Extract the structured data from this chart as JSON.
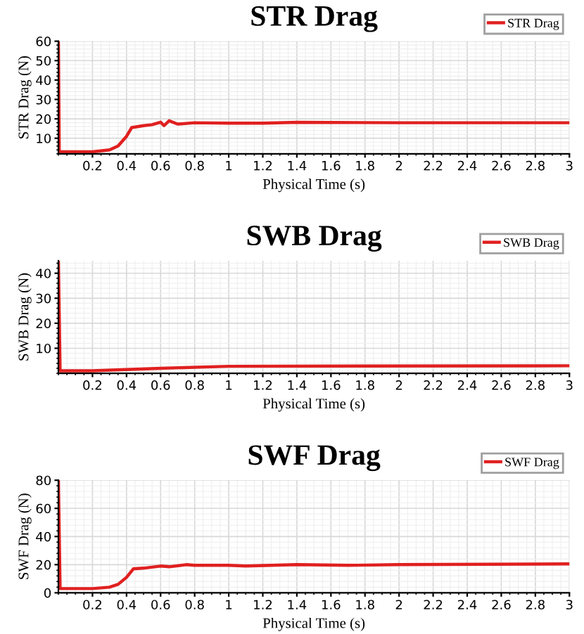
{
  "chart_data": [
    {
      "type": "line",
      "title": "STR Drag",
      "xlabel": "Physical Time (s)",
      "ylabel": "STR Drag (N)",
      "xlim": [
        0,
        3
      ],
      "xticks": [
        0.2,
        0.4,
        0.6,
        0.8,
        1,
        1.2,
        1.4,
        1.6,
        1.8,
        2,
        2.2,
        2.4,
        2.6,
        2.8,
        3
      ],
      "ylim": [
        2,
        60
      ],
      "yticks": [
        10,
        20,
        30,
        40,
        50,
        60
      ],
      "grid": true,
      "legend": "top right",
      "marker": "none",
      "series": [
        {
          "name": "STR Drag",
          "color": "#e02020",
          "x": [
            0,
            0.005,
            0.2,
            0.3,
            0.35,
            0.4,
            0.43,
            0.5,
            0.55,
            0.6,
            0.62,
            0.65,
            0.7,
            0.8,
            1.0,
            1.2,
            1.4,
            2.0,
            3.0
          ],
          "values": [
            60,
            3,
            3,
            4,
            6,
            11,
            15.5,
            16.5,
            17,
            18.3,
            16.5,
            19,
            17.3,
            18,
            17.8,
            17.8,
            18.2,
            18,
            18
          ]
        }
      ]
    },
    {
      "type": "line",
      "title": "SWB Drag",
      "xlabel": "Physical Time (s)",
      "ylabel": "SWB Drag (N)",
      "xlim": [
        0,
        3
      ],
      "xticks": [
        0.2,
        0.4,
        0.6,
        0.8,
        1,
        1.2,
        1.4,
        1.6,
        1.8,
        2,
        2.2,
        2.4,
        2.6,
        2.8,
        3
      ],
      "ylim": [
        0,
        45
      ],
      "yticks": [
        10,
        20,
        30,
        40
      ],
      "grid": true,
      "legend": "top right",
      "marker": "none",
      "series": [
        {
          "name": "SWB Drag",
          "color": "#e02020",
          "x": [
            0,
            0.01,
            0.2,
            0.6,
            1.0,
            3.0
          ],
          "values": [
            45,
            1,
            1,
            2,
            2.8,
            3
          ]
        }
      ]
    },
    {
      "type": "line",
      "title": "SWF Drag",
      "xlabel": "Physical Time (s)",
      "ylabel": "SWF Drag (N)",
      "xlim": [
        0,
        3
      ],
      "xticks": [
        0.2,
        0.4,
        0.6,
        0.8,
        1,
        1.2,
        1.4,
        1.6,
        1.8,
        2,
        2.2,
        2.4,
        2.6,
        2.8,
        3
      ],
      "ylim": [
        0,
        80
      ],
      "yticks": [
        0,
        20,
        40,
        60,
        80
      ],
      "grid": true,
      "legend": "top right",
      "marker": "none",
      "series": [
        {
          "name": "SWF Drag",
          "color": "#e02020",
          "x": [
            0,
            0.01,
            0.2,
            0.3,
            0.35,
            0.4,
            0.44,
            0.5,
            0.6,
            0.65,
            0.75,
            0.8,
            1.0,
            1.1,
            1.4,
            1.7,
            2.0,
            3.0
          ],
          "values": [
            80,
            3,
            3,
            4,
            6,
            11,
            17,
            17.5,
            19,
            18.5,
            20,
            19.5,
            19.5,
            19,
            20,
            19.5,
            20,
            20.5
          ]
        }
      ]
    }
  ]
}
